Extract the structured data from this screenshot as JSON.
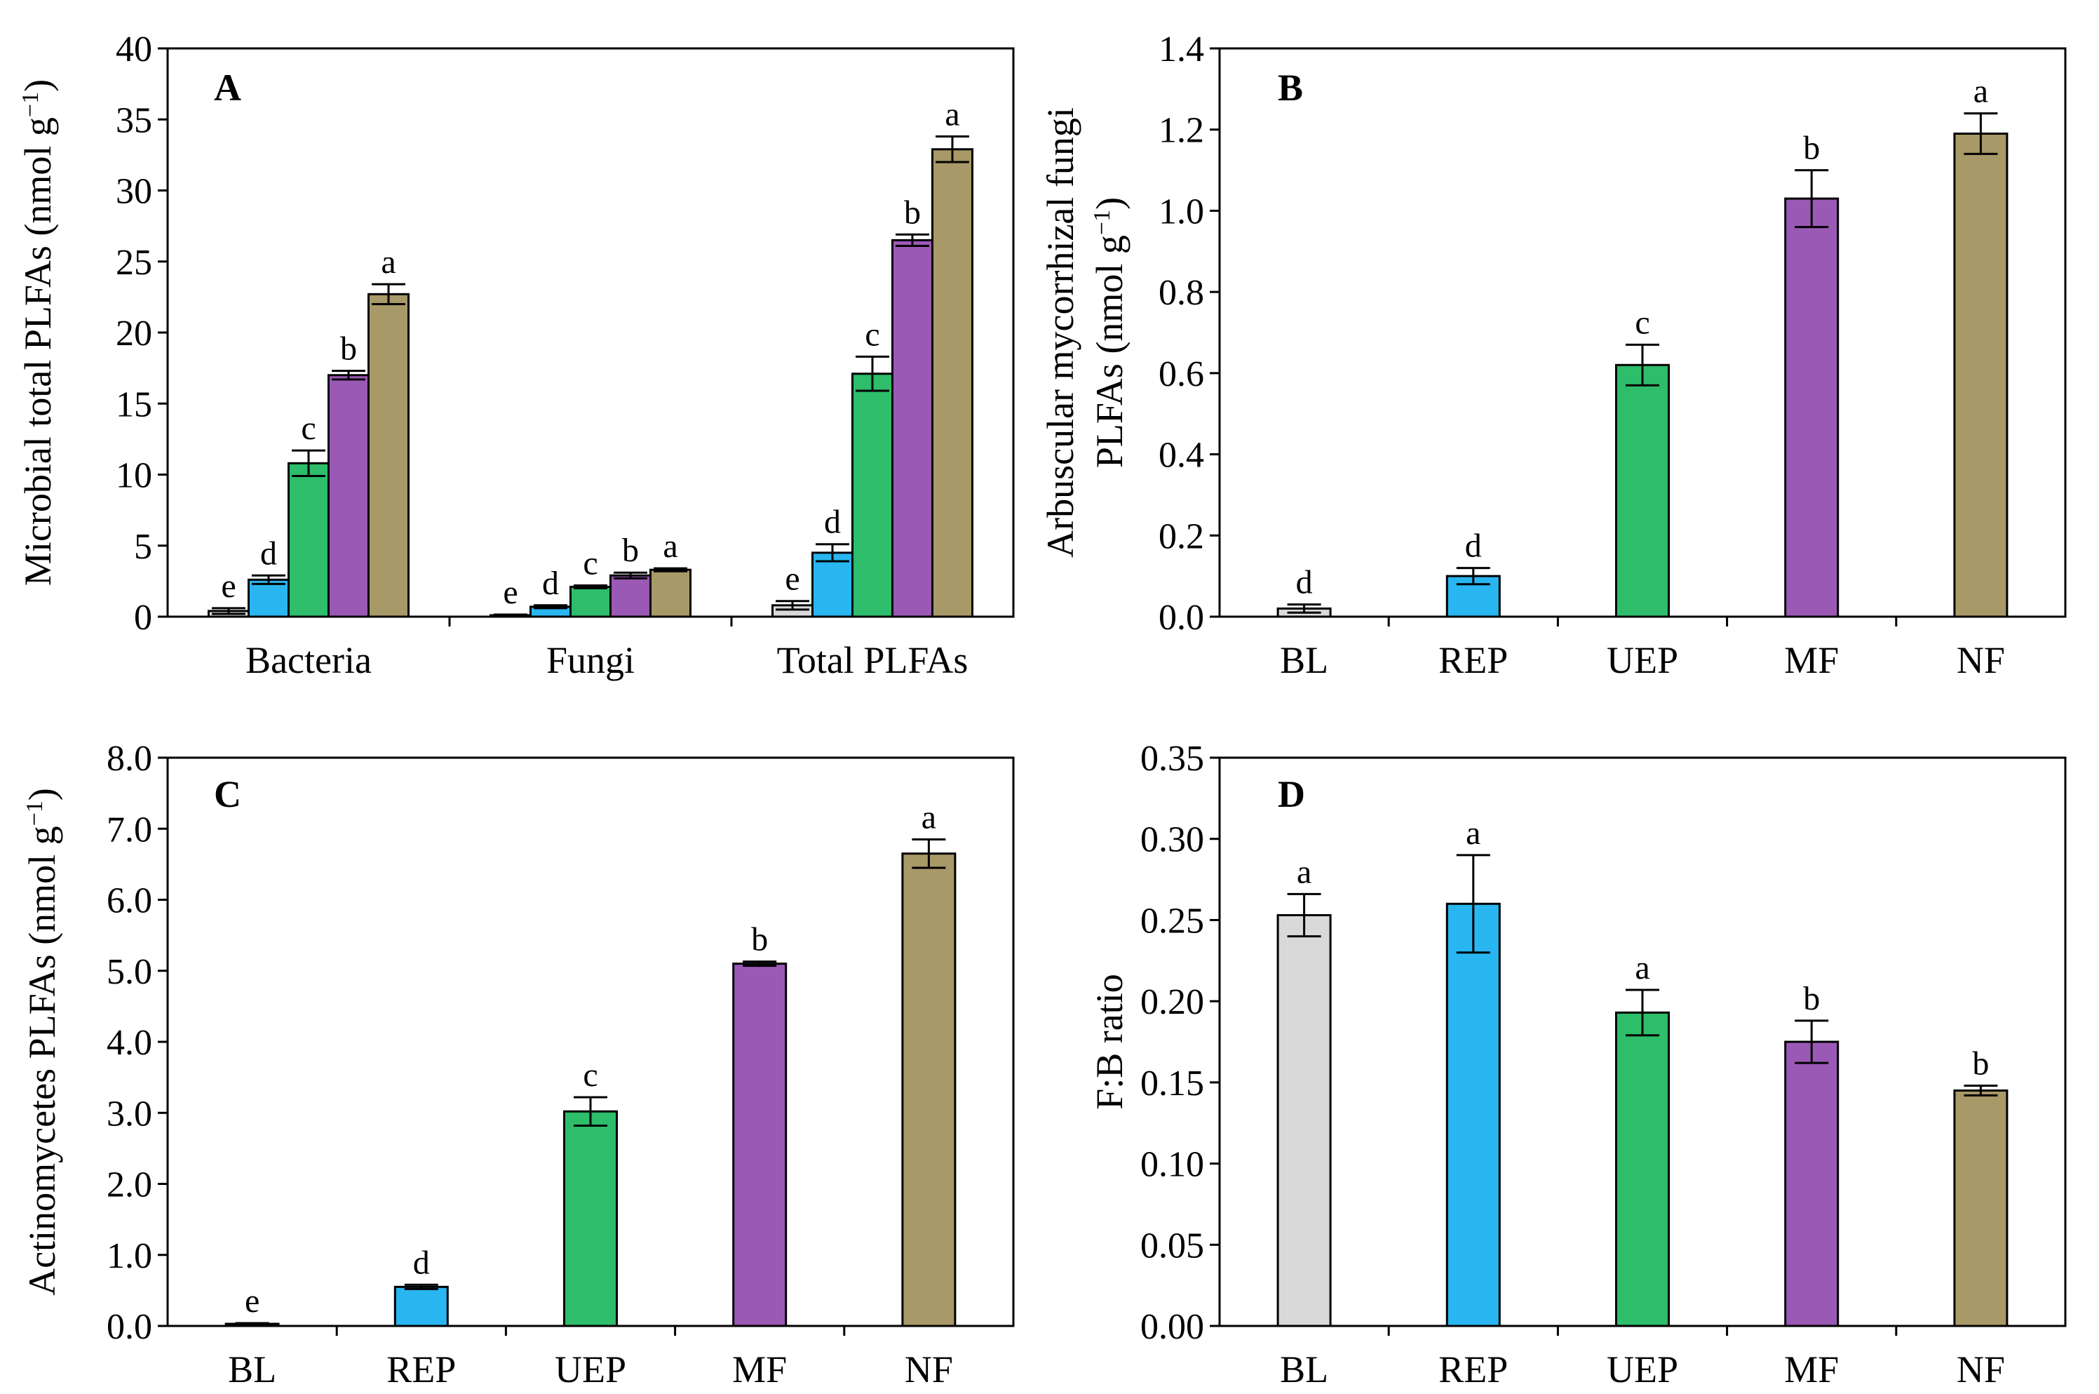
{
  "colors": {
    "BL": "#d9d9d9",
    "REP": "#29b6f0",
    "UEP": "#2ebd6b",
    "MF": "#9b59b6",
    "NF": "#a89968"
  },
  "chart_data": [
    {
      "id": "A",
      "type": "bar",
      "panel_label": "A",
      "categories": [
        "Bacteria",
        "Fungi",
        "Total PLFAs"
      ],
      "series_names": [
        "BL",
        "REP",
        "UEP",
        "MF",
        "NF"
      ],
      "series": [
        {
          "name": "BL",
          "values": [
            0.4,
            0.1,
            0.8
          ],
          "errors": [
            0.2,
            0.05,
            0.3
          ],
          "letters": [
            "e",
            "e",
            "e"
          ]
        },
        {
          "name": "REP",
          "values": [
            2.6,
            0.7,
            4.5
          ],
          "errors": [
            0.3,
            0.1,
            0.6
          ],
          "letters": [
            "d",
            "d",
            "d"
          ]
        },
        {
          "name": "UEP",
          "values": [
            10.8,
            2.1,
            17.1
          ],
          "errors": [
            0.9,
            0.1,
            1.2
          ],
          "letters": [
            "c",
            "c",
            "c"
          ]
        },
        {
          "name": "MF",
          "values": [
            17.0,
            2.9,
            26.5
          ],
          "errors": [
            0.3,
            0.2,
            0.4
          ],
          "letters": [
            "b",
            "b",
            "b"
          ]
        },
        {
          "name": "NF",
          "values": [
            22.7,
            3.3,
            32.9
          ],
          "errors": [
            0.7,
            0.1,
            0.9
          ],
          "letters": [
            "a",
            "a",
            "a"
          ]
        }
      ],
      "ylabel_main": "Microbial total PLFAs (nmol g",
      "ylabel_sup": "−1",
      "ylabel_end": ")",
      "ylim": [
        0,
        40
      ],
      "yticks": [
        "0",
        "5",
        "10",
        "15",
        "20",
        "25",
        "30",
        "35",
        "40"
      ]
    },
    {
      "id": "B",
      "type": "bar",
      "panel_label": "B",
      "categories": [
        "BL",
        "REP",
        "UEP",
        "MF",
        "NF"
      ],
      "values": [
        0.02,
        0.1,
        0.62,
        1.03,
        1.19
      ],
      "errors": [
        0.01,
        0.02,
        0.05,
        0.07,
        0.05
      ],
      "letters": [
        "d",
        "d",
        "c",
        "b",
        "a"
      ],
      "ylabel_line1": "Arbuscular mycorrhizal fungi",
      "ylabel_main": "PLFAs (nmol g",
      "ylabel_sup": "−1",
      "ylabel_end": ")",
      "ylim": [
        0,
        1.4
      ],
      "yticks": [
        "0.0",
        "0.2",
        "0.4",
        "0.6",
        "0.8",
        "1.0",
        "1.2",
        "1.4"
      ]
    },
    {
      "id": "C",
      "type": "bar",
      "panel_label": "C",
      "categories": [
        "BL",
        "REP",
        "UEP",
        "MF",
        "NF"
      ],
      "values": [
        0.03,
        0.55,
        3.02,
        5.1,
        6.65
      ],
      "errors": [
        0.01,
        0.03,
        0.2,
        0.03,
        0.2
      ],
      "letters": [
        "e",
        "d",
        "c",
        "b",
        "a"
      ],
      "ylabel_main": "Actinomycetes PLFAs (nmol g",
      "ylabel_sup": "−1",
      "ylabel_end": ")",
      "ylim": [
        0,
        8
      ],
      "yticks": [
        "0.0",
        "1.0",
        "2.0",
        "3.0",
        "4.0",
        "5.0",
        "6.0",
        "7.0",
        "8.0"
      ]
    },
    {
      "id": "D",
      "type": "bar",
      "panel_label": "D",
      "categories": [
        "BL",
        "REP",
        "UEP",
        "MF",
        "NF"
      ],
      "values": [
        0.253,
        0.26,
        0.193,
        0.175,
        0.145
      ],
      "errors": [
        0.013,
        0.03,
        0.014,
        0.013,
        0.003
      ],
      "letters": [
        "a",
        "a",
        "a",
        "b",
        "b"
      ],
      "ylabel_main": "F:B ratio",
      "ylim": [
        0,
        0.35
      ],
      "yticks": [
        "0.00",
        "0.05",
        "0.10",
        "0.15",
        "0.20",
        "0.25",
        "0.30",
        "0.35"
      ]
    }
  ]
}
